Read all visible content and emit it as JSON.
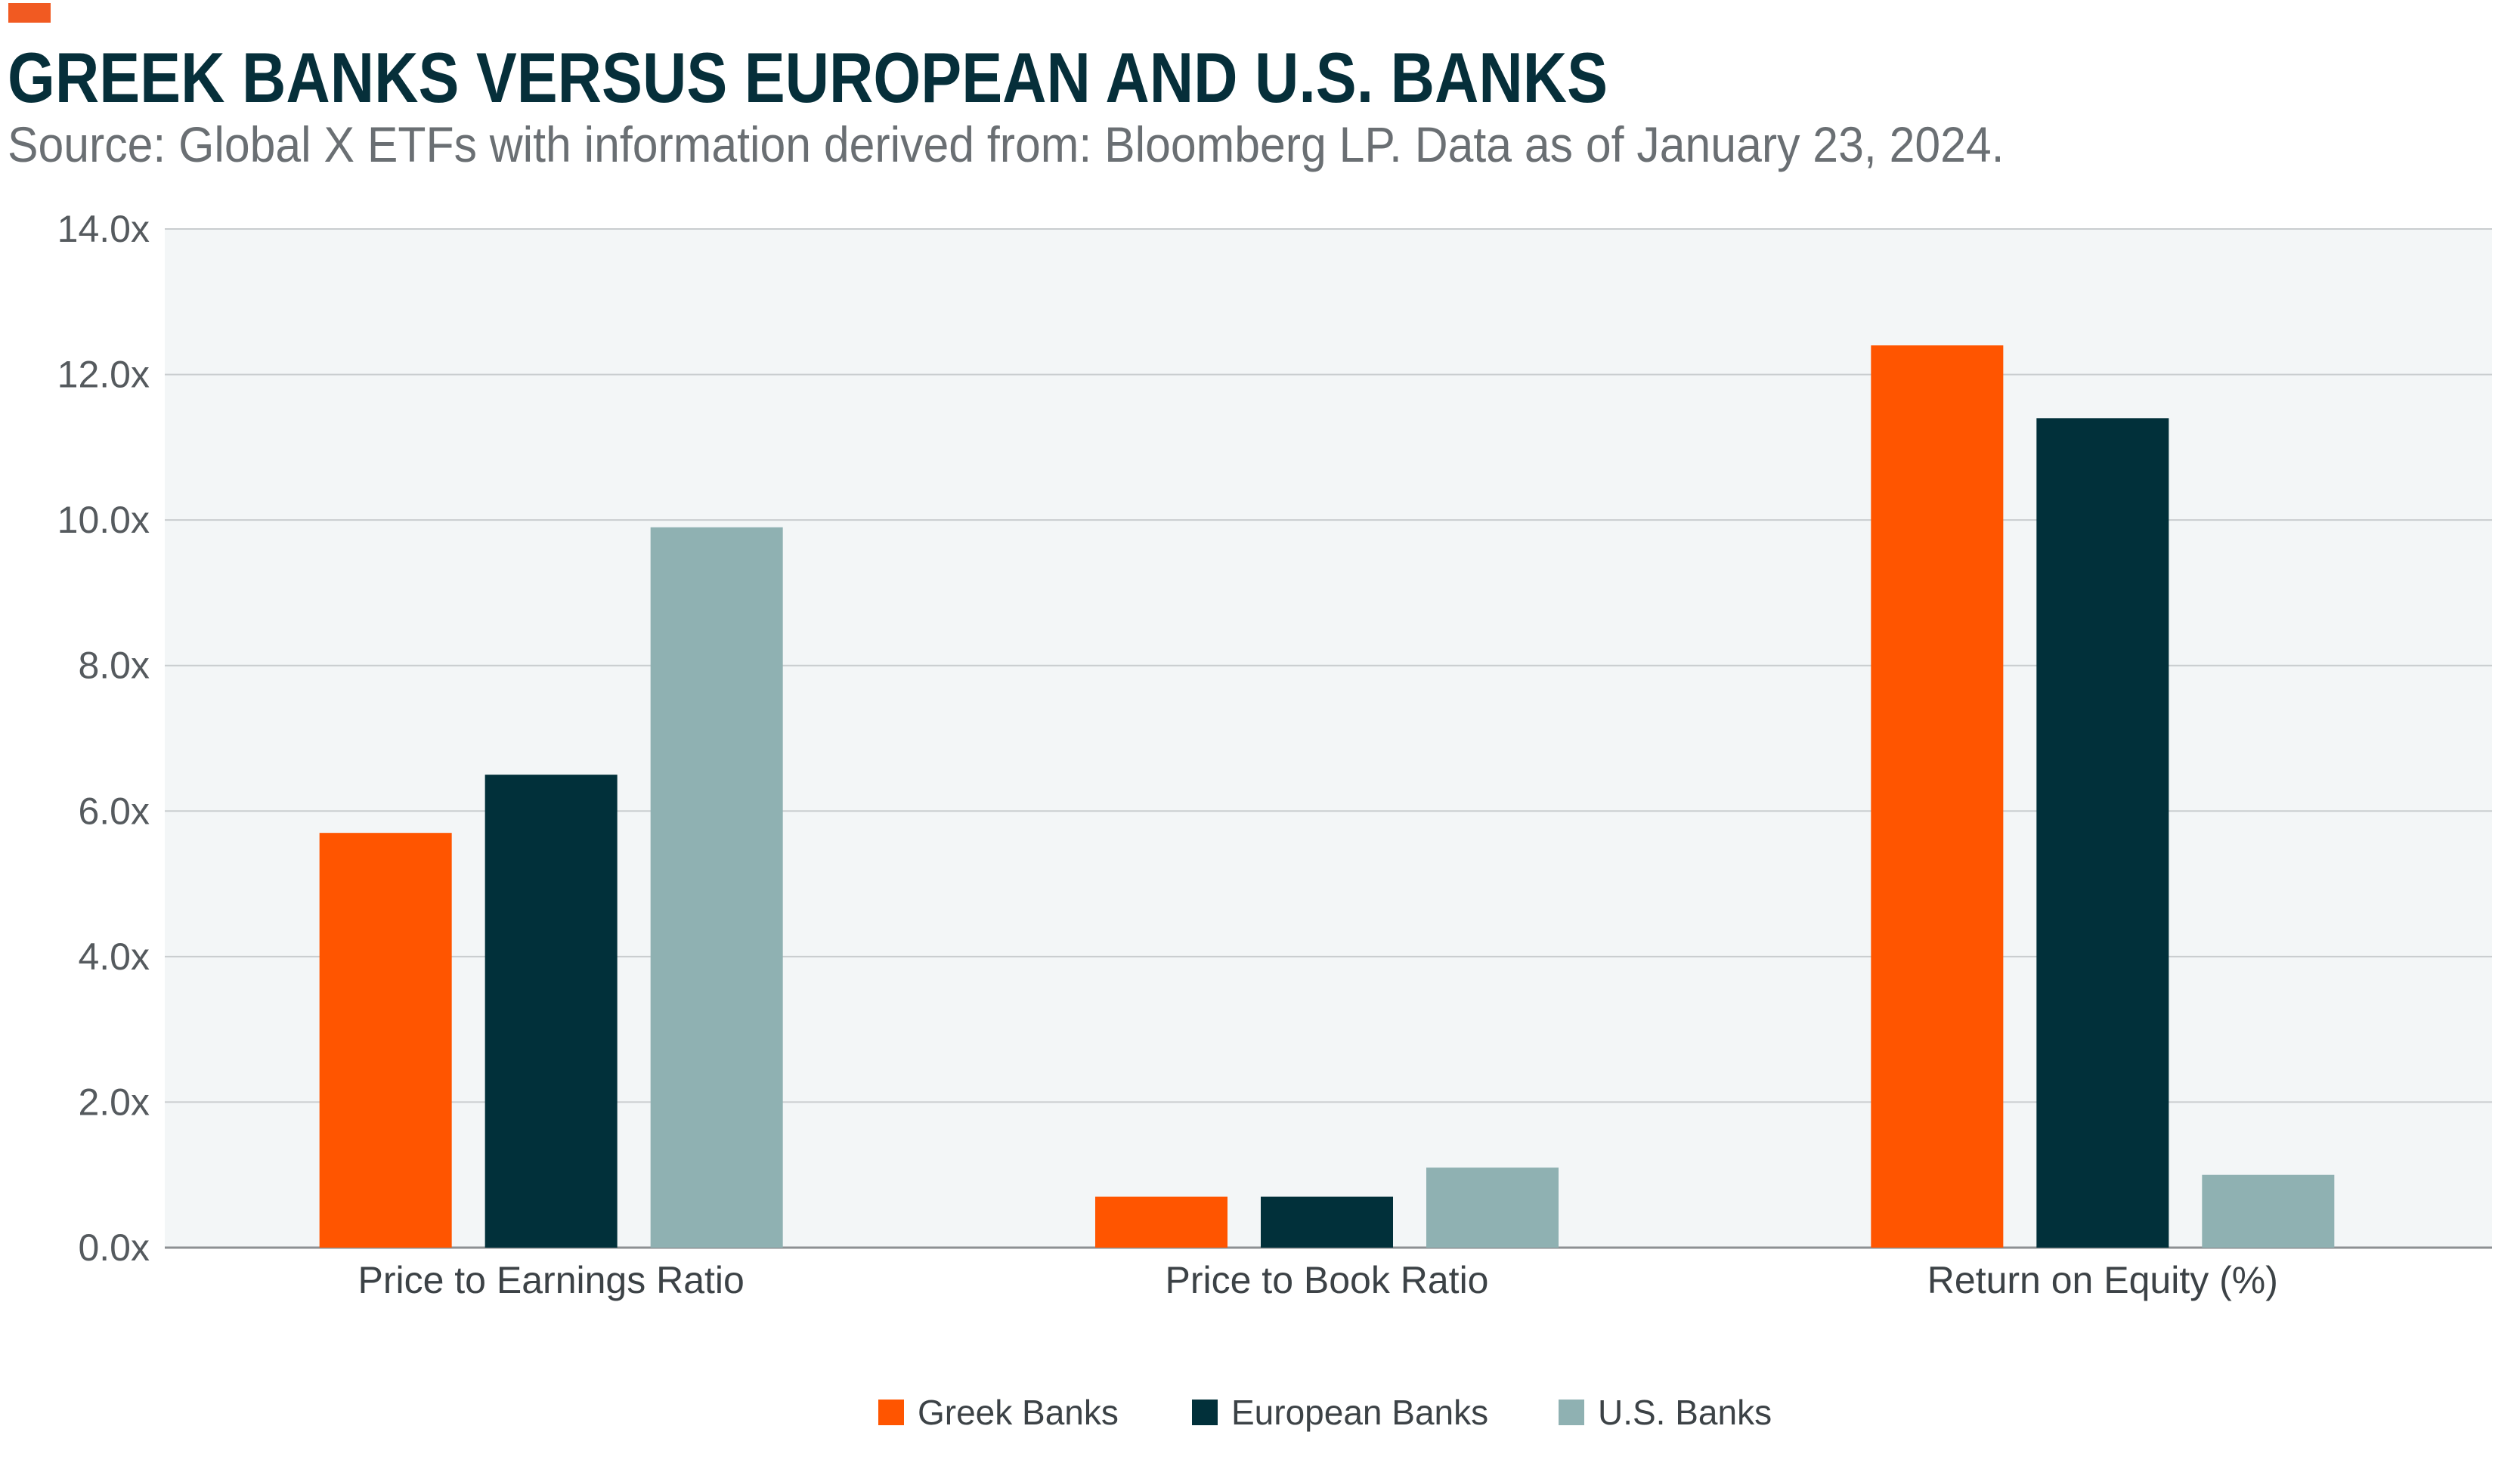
{
  "header": {
    "title": "GREEK BANKS VERSUS EUROPEAN AND U.S. BANKS",
    "subtitle": "Source: Global X ETFs with information derived from: Bloomberg LP. Data as of January 23, 2024."
  },
  "colors": {
    "accent": "#f15a22",
    "greek": "#ff5500",
    "european": "#01303a",
    "us": "#8fb1b2",
    "plot_bg": "#f3f6f7",
    "grid": "#c9cdcf"
  },
  "chart_data": {
    "type": "bar",
    "categories": [
      "Price to Earnings Ratio",
      "Price to Book Ratio",
      "Return on Equity (%)"
    ],
    "series": [
      {
        "name": "Greek Banks",
        "values": [
          5.7,
          0.7,
          12.4
        ]
      },
      {
        "name": "European Banks",
        "values": [
          6.5,
          0.7,
          11.4
        ]
      },
      {
        "name": "U.S. Banks",
        "values": [
          9.9,
          1.1,
          1.0
        ]
      }
    ],
    "ylim": [
      0,
      14
    ],
    "yticks": [
      0,
      2,
      4,
      6,
      8,
      10,
      12,
      14
    ],
    "ytick_labels": [
      "0.0x",
      "2.0x",
      "4.0x",
      "6.0x",
      "8.0x",
      "10.0x",
      "12.0x",
      "14.0x"
    ],
    "grid": true,
    "legend_position": "bottom-center"
  }
}
